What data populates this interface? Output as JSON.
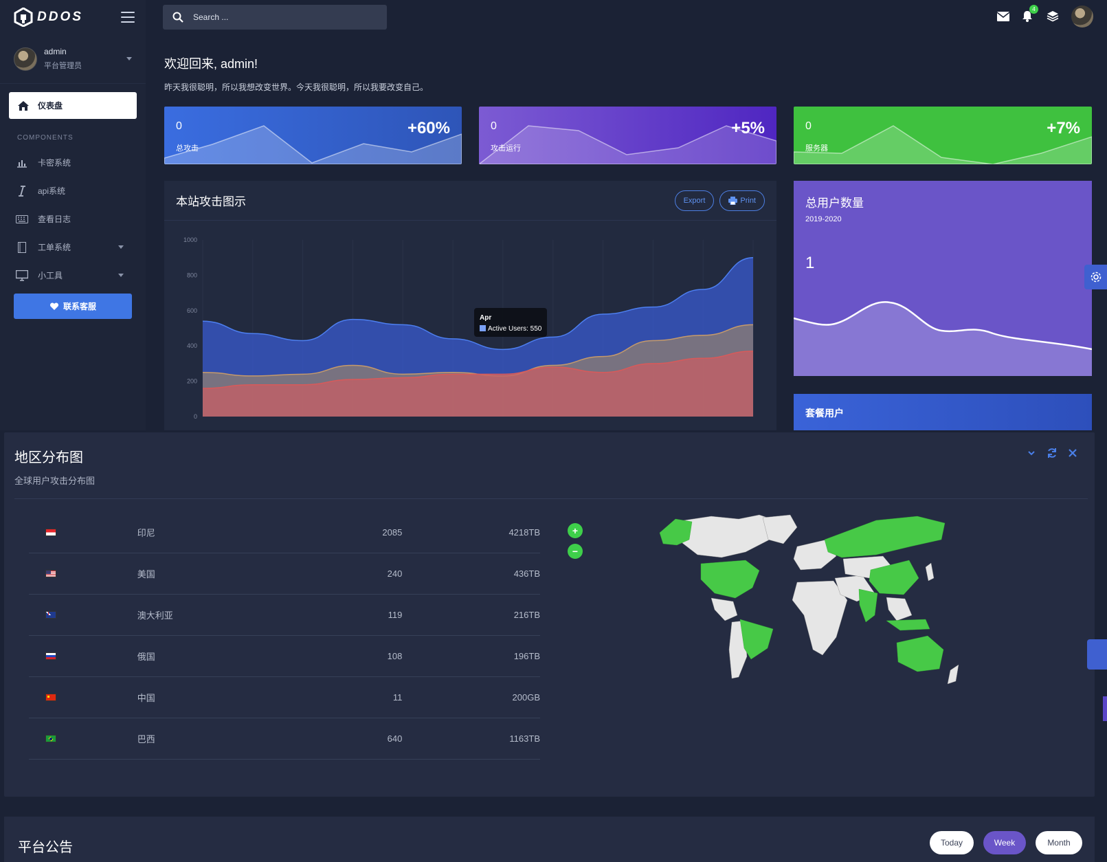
{
  "brand": {
    "name": "DDOS"
  },
  "user": {
    "name": "admin",
    "role": "平台管理员"
  },
  "sidebar": {
    "active": {
      "label": "仪表盘"
    },
    "section": "COMPONENTS",
    "items": [
      {
        "label": "卡密系统",
        "icon": "bar-chart-icon",
        "has_caret": false
      },
      {
        "label": "api系统",
        "icon": "italic-icon",
        "has_caret": false
      },
      {
        "label": "查看日志",
        "icon": "keyboard-icon",
        "has_caret": false
      },
      {
        "label": "工单系统",
        "icon": "book-icon",
        "has_caret": true
      },
      {
        "label": "小工具",
        "icon": "monitor-icon",
        "has_caret": true
      }
    ],
    "contact": "联系客服"
  },
  "topbar": {
    "search_placeholder": "Search ...",
    "notifications_count": "4"
  },
  "welcome": {
    "title": "欢迎回来, admin!",
    "subtitle": "昨天我很聪明，所以我想改变世界。今天我很聪明，所以我要改变自己。"
  },
  "stats": [
    {
      "value": "0",
      "label": "总攻击",
      "pct": "+60%"
    },
    {
      "value": "0",
      "label": "攻击运行",
      "pct": "+5%"
    },
    {
      "value": "0",
      "label": "服务器",
      "pct": "+7%"
    }
  ],
  "attack_panel": {
    "title": "本站攻击图示",
    "export": "Export",
    "print": "Print",
    "tooltip": {
      "title": "Apr",
      "text": "Active Users: 550"
    }
  },
  "chart_data": {
    "type": "area",
    "yticks": [
      "0",
      "200",
      "400",
      "600",
      "800",
      "1000"
    ],
    "ylim": [
      0,
      1000
    ],
    "series": [
      {
        "color": "#3a5bd0",
        "values": [
          540,
          470,
          430,
          550,
          520,
          440,
          380,
          450,
          580,
          620,
          720,
          900
        ]
      },
      {
        "color": "#c69a6a",
        "values": [
          250,
          230,
          240,
          290,
          240,
          250,
          230,
          290,
          340,
          430,
          460,
          520
        ]
      },
      {
        "color": "#d85a5a",
        "values": [
          160,
          180,
          180,
          210,
          220,
          240,
          240,
          280,
          250,
          300,
          330,
          370
        ]
      }
    ]
  },
  "users_card": {
    "title": "总用户数量",
    "range": "2019-2020",
    "value": "1"
  },
  "plan_card": {
    "title": "套餐用户"
  },
  "region": {
    "title": "地区分布图",
    "subtitle": "全球用户攻击分布图",
    "rows": [
      {
        "flag": "indonesia",
        "name": "印尼",
        "count": "2085",
        "size": "4218TB"
      },
      {
        "flag": "usa",
        "name": "美国",
        "count": "240",
        "size": "436TB"
      },
      {
        "flag": "australia",
        "name": "澳大利亚",
        "count": "119",
        "size": "216TB"
      },
      {
        "flag": "russia",
        "name": "俄国",
        "count": "108",
        "size": "196TB"
      },
      {
        "flag": "china",
        "name": "中国",
        "count": "11",
        "size": "200GB"
      },
      {
        "flag": "brazil",
        "name": "巴西",
        "count": "640",
        "size": "1163TB"
      }
    ],
    "zoom_in": "+",
    "zoom_out": "−"
  },
  "notice": {
    "title": "平台公告",
    "filters": [
      "Today",
      "Week",
      "Month"
    ],
    "active_filter": "Week"
  },
  "colors": {
    "accent_blue": "#3f76e4",
    "accent_purple": "#6a55c8",
    "accent_green": "#3ecf4a"
  }
}
